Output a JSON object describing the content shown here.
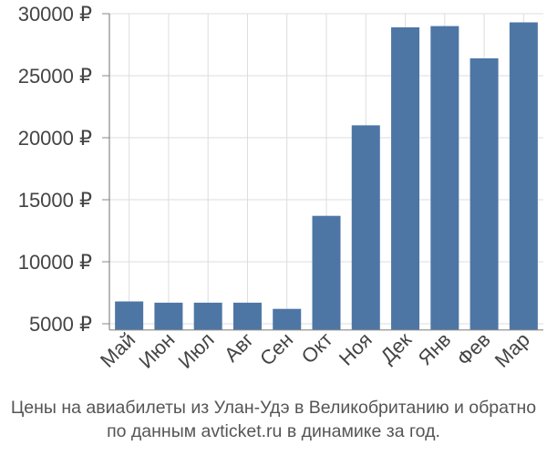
{
  "chart_data": {
    "type": "bar",
    "categories": [
      "Май",
      "Июн",
      "Июл",
      "Авг",
      "Сен",
      "Окт",
      "Ноя",
      "Дек",
      "Янв",
      "Фев",
      "Мар"
    ],
    "values": [
      6800,
      6700,
      6700,
      6700,
      6200,
      13700,
      21000,
      28900,
      29000,
      26400,
      29300
    ],
    "ylim": [
      4500,
      30000
    ],
    "yticks": [
      5000,
      10000,
      15000,
      20000,
      25000,
      30000
    ],
    "ytick_labels": [
      "5000 ₽",
      "10000 ₽",
      "15000 ₽",
      "20000 ₽",
      "25000 ₽",
      "30000 ₽"
    ],
    "grid": true,
    "bar_color": "#4d76a5",
    "grid_color": "#dddddd",
    "axis_color": "#888888"
  },
  "caption": {
    "line1": "Цены на авиабилеты из Улан-Удэ в Великобританию и обратно",
    "line2": "по данным avticket.ru в динамике за год."
  }
}
